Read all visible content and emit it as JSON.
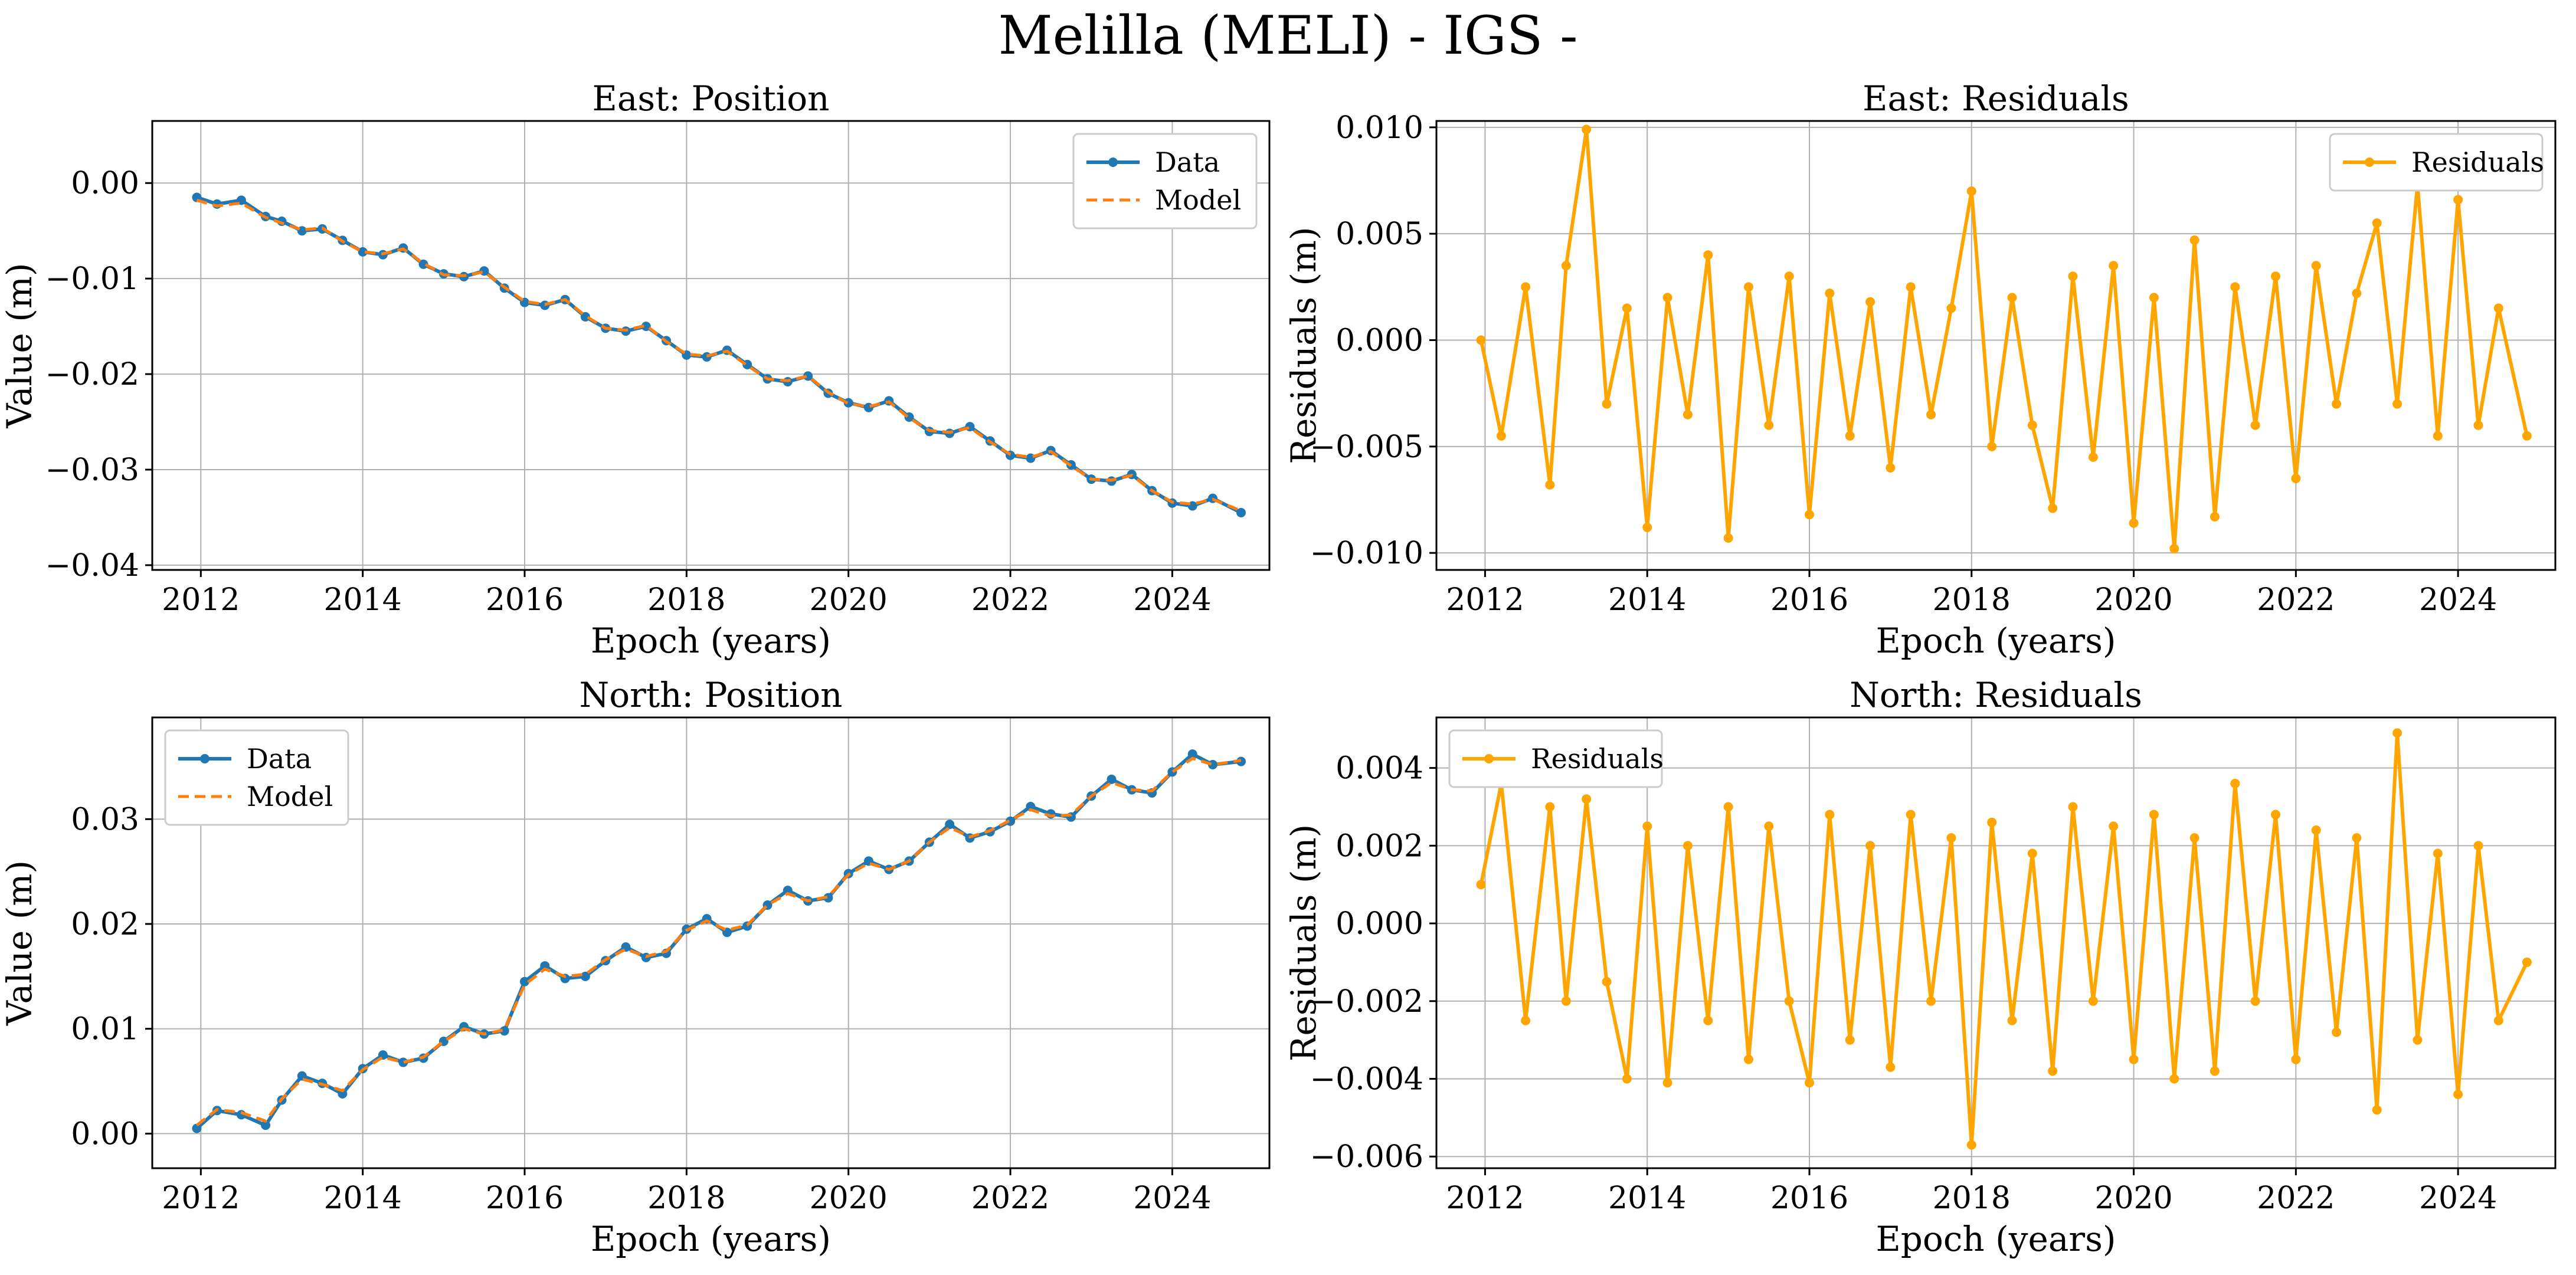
{
  "figure": {
    "title": "Melilla (MELI) - IGS -",
    "colors": {
      "data": "#1f77b4",
      "model": "#ff7f0e",
      "residuals": "#ffa500",
      "grid": "#b0b0b0",
      "axis": "#000000"
    }
  },
  "chart_data": [
    {
      "id": "east-position",
      "type": "line",
      "title": "East: Position",
      "xlabel": "Epoch (years)",
      "ylabel": "Value (m)",
      "xlim": [
        2011.4,
        2025.2
      ],
      "ylim": [
        -0.0405,
        0.0065
      ],
      "xticks": [
        2012,
        2014,
        2016,
        2018,
        2020,
        2022,
        2024
      ],
      "xtick_labels": [
        "2012",
        "2014",
        "2016",
        "2018",
        "2020",
        "2022",
        "2024"
      ],
      "yticks": [
        0.0,
        -0.01,
        -0.02,
        -0.03,
        -0.04
      ],
      "ytick_labels": [
        "0.00",
        "−0.01",
        "−0.02",
        "−0.03",
        "−0.04"
      ],
      "grid": true,
      "legend": {
        "position": "top-right",
        "entries": [
          "Data",
          "Model"
        ]
      },
      "series": [
        {
          "name": "Data",
          "style": "line-markers",
          "color": "#1f77b4",
          "x": [
            2011.95,
            2012.2,
            2012.5,
            2012.8,
            2013.0,
            2013.25,
            2013.5,
            2013.75,
            2014.0,
            2014.25,
            2014.5,
            2014.75,
            2015.0,
            2015.25,
            2015.5,
            2015.75,
            2016.0,
            2016.25,
            2016.5,
            2016.75,
            2017.0,
            2017.25,
            2017.5,
            2017.75,
            2018.0,
            2018.25,
            2018.5,
            2018.75,
            2019.0,
            2019.25,
            2019.5,
            2019.75,
            2020.0,
            2020.25,
            2020.5,
            2020.75,
            2021.0,
            2021.25,
            2021.5,
            2021.75,
            2022.0,
            2022.25,
            2022.5,
            2022.75,
            2023.0,
            2023.25,
            2023.5,
            2023.75,
            2024.0,
            2024.25,
            2024.5,
            2024.85
          ],
          "y": [
            -0.0015,
            -0.0022,
            -0.0018,
            -0.0035,
            -0.004,
            -0.005,
            -0.0048,
            -0.006,
            -0.0072,
            -0.0075,
            -0.0068,
            -0.0085,
            -0.0095,
            -0.0098,
            -0.0092,
            -0.011,
            -0.0125,
            -0.0128,
            -0.0122,
            -0.014,
            -0.0152,
            -0.0155,
            -0.015,
            -0.0165,
            -0.018,
            -0.0182,
            -0.0175,
            -0.019,
            -0.0205,
            -0.0208,
            -0.0202,
            -0.022,
            -0.023,
            -0.0235,
            -0.0228,
            -0.0245,
            -0.026,
            -0.0262,
            -0.0255,
            -0.027,
            -0.0285,
            -0.0288,
            -0.028,
            -0.0295,
            -0.031,
            -0.0312,
            -0.0305,
            -0.0322,
            -0.0335,
            -0.0338,
            -0.033,
            -0.0345
          ]
        },
        {
          "name": "Model",
          "style": "dashed",
          "color": "#ff7f0e",
          "x": [
            2011.95,
            2012.2,
            2012.5,
            2012.8,
            2013.0,
            2013.25,
            2013.5,
            2013.75,
            2014.0,
            2014.25,
            2014.5,
            2014.75,
            2015.0,
            2015.25,
            2015.5,
            2015.75,
            2016.0,
            2016.25,
            2016.5,
            2016.75,
            2017.0,
            2017.25,
            2017.5,
            2017.75,
            2018.0,
            2018.25,
            2018.5,
            2018.75,
            2019.0,
            2019.25,
            2019.5,
            2019.75,
            2020.0,
            2020.25,
            2020.5,
            2020.75,
            2021.0,
            2021.25,
            2021.5,
            2021.75,
            2022.0,
            2022.25,
            2022.5,
            2022.75,
            2023.0,
            2023.25,
            2023.5,
            2023.75,
            2024.0,
            2024.25,
            2024.5,
            2024.85
          ],
          "y": [
            -0.0018,
            -0.0024,
            -0.0021,
            -0.0036,
            -0.0042,
            -0.0049,
            -0.0047,
            -0.0061,
            -0.0072,
            -0.0074,
            -0.0069,
            -0.0084,
            -0.0096,
            -0.0097,
            -0.0093,
            -0.0109,
            -0.0124,
            -0.0127,
            -0.0122,
            -0.0139,
            -0.0152,
            -0.0154,
            -0.0149,
            -0.0166,
            -0.0179,
            -0.0181,
            -0.0176,
            -0.0191,
            -0.0205,
            -0.0207,
            -0.0202,
            -0.0219,
            -0.0231,
            -0.0234,
            -0.0229,
            -0.0246,
            -0.0259,
            -0.0261,
            -0.0256,
            -0.0271,
            -0.0284,
            -0.0287,
            -0.0281,
            -0.0296,
            -0.031,
            -0.0311,
            -0.0306,
            -0.0322,
            -0.0334,
            -0.0336,
            -0.0331,
            -0.0343
          ]
        }
      ]
    },
    {
      "id": "east-residuals",
      "type": "line",
      "title": "East: Residuals",
      "xlabel": "Epoch (years)",
      "ylabel": "Residuals (m)",
      "xlim": [
        2011.4,
        2025.2
      ],
      "ylim": [
        -0.0108,
        0.0103
      ],
      "xticks": [
        2012,
        2014,
        2016,
        2018,
        2020,
        2022,
        2024
      ],
      "xtick_labels": [
        "2012",
        "2014",
        "2016",
        "2018",
        "2020",
        "2022",
        "2024"
      ],
      "yticks": [
        0.01,
        0.005,
        0.0,
        -0.005,
        -0.01
      ],
      "ytick_labels": [
        "0.010",
        "0.005",
        "0.000",
        "−0.005",
        "−0.010"
      ],
      "grid": true,
      "legend": {
        "position": "top-right",
        "entries": [
          "Residuals"
        ]
      },
      "series": [
        {
          "name": "Residuals",
          "style": "line-markers",
          "color": "#ffa500",
          "x": [
            2011.95,
            2012.2,
            2012.5,
            2012.8,
            2013.0,
            2013.25,
            2013.5,
            2013.75,
            2014.0,
            2014.25,
            2014.5,
            2014.75,
            2015.0,
            2015.25,
            2015.5,
            2015.75,
            2016.0,
            2016.25,
            2016.5,
            2016.75,
            2017.0,
            2017.25,
            2017.5,
            2017.75,
            2018.0,
            2018.25,
            2018.5,
            2018.75,
            2019.0,
            2019.25,
            2019.5,
            2019.75,
            2020.0,
            2020.25,
            2020.5,
            2020.75,
            2021.0,
            2021.25,
            2021.5,
            2021.75,
            2022.0,
            2022.25,
            2022.5,
            2022.75,
            2023.0,
            2023.25,
            2023.5,
            2023.75,
            2024.0,
            2024.25,
            2024.5,
            2024.85
          ],
          "y": [
            0.0,
            -0.0045,
            0.0025,
            -0.0068,
            0.0035,
            0.0099,
            -0.003,
            0.0015,
            -0.0088,
            0.002,
            -0.0035,
            0.004,
            -0.0093,
            0.0025,
            -0.004,
            0.003,
            -0.0082,
            0.0022,
            -0.0045,
            0.0018,
            -0.006,
            0.0025,
            -0.0035,
            0.0015,
            0.007,
            -0.005,
            0.002,
            -0.004,
            -0.0079,
            0.003,
            -0.0055,
            0.0035,
            -0.0086,
            0.002,
            -0.0098,
            0.0047,
            -0.0083,
            0.0025,
            -0.004,
            0.003,
            -0.0065,
            0.0035,
            -0.003,
            0.0022,
            0.0055,
            -0.003,
            0.0073,
            -0.0045,
            0.0066,
            -0.004,
            0.0015,
            -0.0045
          ]
        }
      ]
    },
    {
      "id": "north-position",
      "type": "line",
      "title": "North: Position",
      "xlabel": "Epoch (years)",
      "ylabel": "Value (m)",
      "xlim": [
        2011.4,
        2025.2
      ],
      "ylim": [
        -0.0033,
        0.0397
      ],
      "xticks": [
        2012,
        2014,
        2016,
        2018,
        2020,
        2022,
        2024
      ],
      "xtick_labels": [
        "2012",
        "2014",
        "2016",
        "2018",
        "2020",
        "2022",
        "2024"
      ],
      "yticks": [
        0.0,
        0.01,
        0.02,
        0.03
      ],
      "ytick_labels": [
        "0.00",
        "0.01",
        "0.02",
        "0.03"
      ],
      "grid": true,
      "legend": {
        "position": "top-left",
        "entries": [
          "Data",
          "Model"
        ]
      },
      "series": [
        {
          "name": "Data",
          "style": "line-markers",
          "color": "#1f77b4",
          "x": [
            2011.95,
            2012.2,
            2012.5,
            2012.8,
            2013.0,
            2013.25,
            2013.5,
            2013.75,
            2014.0,
            2014.25,
            2014.5,
            2014.75,
            2015.0,
            2015.25,
            2015.5,
            2015.75,
            2016.0,
            2016.25,
            2016.5,
            2016.75,
            2017.0,
            2017.25,
            2017.5,
            2017.75,
            2018.0,
            2018.25,
            2018.5,
            2018.75,
            2019.0,
            2019.25,
            2019.5,
            2019.75,
            2020.0,
            2020.25,
            2020.5,
            2020.75,
            2021.0,
            2021.25,
            2021.5,
            2021.75,
            2022.0,
            2022.25,
            2022.5,
            2022.75,
            2023.0,
            2023.25,
            2023.5,
            2023.75,
            2024.0,
            2024.25,
            2024.5,
            2024.85
          ],
          "y": [
            0.0005,
            0.0022,
            0.0018,
            0.0008,
            0.0032,
            0.0055,
            0.0048,
            0.0038,
            0.0062,
            0.0075,
            0.0068,
            0.0072,
            0.0088,
            0.0102,
            0.0095,
            0.0098,
            0.0145,
            0.016,
            0.0148,
            0.015,
            0.0165,
            0.0178,
            0.0168,
            0.0172,
            0.0195,
            0.0205,
            0.0192,
            0.0198,
            0.0218,
            0.0232,
            0.0222,
            0.0225,
            0.0248,
            0.026,
            0.0252,
            0.026,
            0.0278,
            0.0295,
            0.0282,
            0.0288,
            0.0298,
            0.0312,
            0.0305,
            0.0302,
            0.0322,
            0.0338,
            0.0328,
            0.0325,
            0.0345,
            0.0362,
            0.0352,
            0.0355
          ]
        },
        {
          "name": "Model",
          "style": "dashed",
          "color": "#ff7f0e",
          "x": [
            2011.95,
            2012.2,
            2012.5,
            2012.8,
            2013.0,
            2013.25,
            2013.5,
            2013.75,
            2014.0,
            2014.25,
            2014.5,
            2014.75,
            2015.0,
            2015.25,
            2015.5,
            2015.75,
            2016.0,
            2016.25,
            2016.5,
            2016.75,
            2017.0,
            2017.25,
            2017.5,
            2017.75,
            2018.0,
            2018.25,
            2018.5,
            2018.75,
            2019.0,
            2019.25,
            2019.5,
            2019.75,
            2020.0,
            2020.25,
            2020.5,
            2020.75,
            2021.0,
            2021.25,
            2021.5,
            2021.75,
            2022.0,
            2022.25,
            2022.5,
            2022.75,
            2023.0,
            2023.25,
            2023.5,
            2023.75,
            2024.0,
            2024.25,
            2024.5,
            2024.85
          ],
          "y": [
            0.0008,
            0.0023,
            0.002,
            0.0012,
            0.0033,
            0.0052,
            0.0047,
            0.0041,
            0.0061,
            0.0073,
            0.0068,
            0.0073,
            0.0088,
            0.01,
            0.0095,
            0.0099,
            0.0142,
            0.0157,
            0.015,
            0.0152,
            0.0166,
            0.0176,
            0.0169,
            0.0174,
            0.0194,
            0.0203,
            0.0194,
            0.0199,
            0.0218,
            0.0229,
            0.0222,
            0.0226,
            0.0247,
            0.0258,
            0.0252,
            0.026,
            0.0278,
            0.0292,
            0.0283,
            0.0289,
            0.0299,
            0.0309,
            0.0303,
            0.0304,
            0.0322,
            0.0335,
            0.0328,
            0.0327,
            0.0345,
            0.0358,
            0.0352,
            0.0356
          ]
        }
      ]
    },
    {
      "id": "north-residuals",
      "type": "line",
      "title": "North: Residuals",
      "xlabel": "Epoch (years)",
      "ylabel": "Residuals (m)",
      "xlim": [
        2011.4,
        2025.2
      ],
      "ylim": [
        -0.0063,
        0.0053
      ],
      "xticks": [
        2012,
        2014,
        2016,
        2018,
        2020,
        2022,
        2024
      ],
      "xtick_labels": [
        "2012",
        "2014",
        "2016",
        "2018",
        "2020",
        "2022",
        "2024"
      ],
      "yticks": [
        0.004,
        0.002,
        0.0,
        -0.002,
        -0.004,
        -0.006
      ],
      "ytick_labels": [
        "0.004",
        "0.002",
        "0.000",
        "−0.002",
        "−0.004",
        "−0.006"
      ],
      "grid": true,
      "legend": {
        "position": "top-left",
        "entries": [
          "Residuals"
        ]
      },
      "series": [
        {
          "name": "Residuals",
          "style": "line-markers",
          "color": "#ffa500",
          "x": [
            2011.95,
            2012.2,
            2012.5,
            2012.8,
            2013.0,
            2013.25,
            2013.5,
            2013.75,
            2014.0,
            2014.25,
            2014.5,
            2014.75,
            2015.0,
            2015.25,
            2015.5,
            2015.75,
            2016.0,
            2016.25,
            2016.5,
            2016.75,
            2017.0,
            2017.25,
            2017.5,
            2017.75,
            2018.0,
            2018.25,
            2018.5,
            2018.75,
            2019.0,
            2019.25,
            2019.5,
            2019.75,
            2020.0,
            2020.25,
            2020.5,
            2020.75,
            2021.0,
            2021.25,
            2021.5,
            2021.75,
            2022.0,
            2022.25,
            2022.5,
            2022.75,
            2023.0,
            2023.25,
            2023.5,
            2023.75,
            2024.0,
            2024.25,
            2024.5,
            2024.85
          ],
          "y": [
            0.001,
            0.0036,
            -0.0025,
            0.003,
            -0.002,
            0.0032,
            -0.0015,
            -0.004,
            0.0025,
            -0.0041,
            0.002,
            -0.0025,
            0.003,
            -0.0035,
            0.0025,
            -0.002,
            -0.0041,
            0.0028,
            -0.003,
            0.002,
            -0.0037,
            0.0028,
            -0.002,
            0.0022,
            -0.0057,
            0.0026,
            -0.0025,
            0.0018,
            -0.0038,
            0.003,
            -0.002,
            0.0025,
            -0.0035,
            0.0028,
            -0.004,
            0.0022,
            -0.0038,
            0.0036,
            -0.002,
            0.0028,
            -0.0035,
            0.0024,
            -0.0028,
            0.0022,
            -0.0048,
            0.0049,
            -0.003,
            0.0018,
            -0.0044,
            0.002,
            -0.0025,
            -0.001
          ]
        }
      ]
    }
  ]
}
